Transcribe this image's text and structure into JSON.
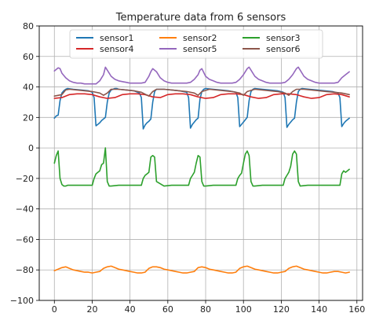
{
  "chart_data": {
    "type": "line",
    "title": "Temperature data from 6 sensors",
    "xlabel": "",
    "ylabel": "",
    "xlim": [
      -8,
      163
    ],
    "ylim": [
      -100,
      80
    ],
    "xticks": [
      0,
      20,
      40,
      60,
      80,
      100,
      120,
      140,
      160
    ],
    "yticks": [
      -100,
      -80,
      -60,
      -40,
      -20,
      0,
      20,
      40,
      60,
      80
    ],
    "grid": true,
    "legend_position": "top-center",
    "legend_columns": 3,
    "series": [
      {
        "name": "sensor1",
        "color": "#1f77b4",
        "x": [
          0,
          1,
          2,
          3,
          4,
          5,
          6,
          7,
          10,
          14,
          18,
          20,
          21,
          22,
          23,
          24,
          25,
          26,
          27,
          28,
          29,
          30,
          31,
          32,
          33,
          34,
          38,
          42,
          45,
          46,
          47,
          48,
          49,
          50,
          51,
          52,
          53,
          54,
          58,
          62,
          66,
          70,
          71,
          72,
          73,
          74,
          75,
          76,
          77,
          78,
          79,
          80,
          84,
          88,
          92,
          96,
          97,
          98,
          99,
          100,
          101,
          102,
          103,
          104,
          105,
          106,
          110,
          114,
          118,
          121,
          122,
          123,
          124,
          125,
          126,
          127,
          128,
          129,
          130,
          131,
          135,
          139,
          143,
          147,
          150,
          151,
          152,
          153,
          154,
          155,
          156
        ],
        "values": [
          19.5,
          21,
          21.5,
          31,
          36,
          37.5,
          38.5,
          39,
          38.5,
          38,
          37.5,
          36.5,
          33,
          14.5,
          15.5,
          16.5,
          18,
          19,
          20,
          30,
          36,
          38,
          38.5,
          39,
          39,
          38.5,
          38,
          37.5,
          36,
          33,
          12.5,
          15,
          16.5,
          17.5,
          19,
          30,
          37,
          38.5,
          38.5,
          38,
          37.5,
          36.5,
          33,
          13,
          15.5,
          17,
          18.5,
          19.5,
          32,
          37,
          38.5,
          39,
          38.5,
          38,
          37.5,
          36.5,
          33,
          14,
          15.5,
          17,
          18.5,
          20,
          31,
          37,
          38.5,
          39,
          38.5,
          38,
          37.5,
          36.5,
          33,
          13.5,
          15.5,
          17,
          18.5,
          19.5,
          30,
          37,
          38.5,
          39,
          38.5,
          38,
          37.5,
          37,
          36,
          33,
          14,
          16,
          17.5,
          18.5,
          19.5
        ]
      },
      {
        "name": "sensor2",
        "color": "#ff7f0e",
        "x": [
          0,
          2,
          4,
          6,
          8,
          10,
          12,
          14,
          16,
          18,
          20,
          22,
          24,
          26,
          28,
          30,
          32,
          34,
          36,
          38,
          40,
          42,
          44,
          46,
          48,
          50,
          52,
          54,
          56,
          58,
          60,
          62,
          64,
          66,
          68,
          70,
          72,
          74,
          76,
          78,
          80,
          82,
          84,
          86,
          88,
          90,
          92,
          94,
          96,
          98,
          100,
          102,
          104,
          106,
          108,
          110,
          112,
          114,
          116,
          118,
          120,
          122,
          124,
          126,
          128,
          130,
          132,
          134,
          136,
          138,
          140,
          142,
          144,
          146,
          148,
          150,
          152,
          154,
          156
        ],
        "values": [
          -80.5,
          -79.5,
          -78.5,
          -78,
          -79,
          -80,
          -80.5,
          -81,
          -81.5,
          -81.5,
          -82,
          -81.5,
          -81,
          -79,
          -78,
          -77.5,
          -78.5,
          -79.5,
          -80,
          -80.5,
          -81,
          -81.5,
          -82,
          -82,
          -81.5,
          -79,
          -78,
          -78,
          -78.5,
          -79.5,
          -80,
          -80.5,
          -81,
          -81.5,
          -82,
          -82,
          -81.5,
          -81,
          -78.5,
          -78,
          -78.5,
          -79.5,
          -80,
          -80.5,
          -81,
          -81.5,
          -82,
          -82,
          -81.5,
          -79,
          -78,
          -77.5,
          -78.5,
          -79.5,
          -80,
          -80.5,
          -81,
          -81.5,
          -82,
          -82,
          -81.5,
          -81,
          -79,
          -78,
          -77.5,
          -78.5,
          -79.5,
          -80,
          -80.5,
          -81,
          -81.5,
          -82,
          -82,
          -81.5,
          -81,
          -81,
          -81.5,
          -82,
          -81.5
        ]
      },
      {
        "name": "sensor3",
        "color": "#2ca02c",
        "x": [
          0,
          1,
          2,
          3,
          4,
          5,
          6,
          7,
          10,
          14,
          18,
          20,
          21,
          22,
          23,
          24,
          25,
          26,
          27,
          28,
          29,
          30,
          34,
          38,
          42,
          46,
          47,
          48,
          49,
          50,
          51,
          52,
          53,
          54,
          58,
          62,
          66,
          70,
          71,
          72,
          73,
          74,
          75,
          76,
          77,
          78,
          79,
          80,
          84,
          88,
          92,
          96,
          97,
          98,
          99,
          100,
          101,
          102,
          103,
          104,
          105,
          106,
          110,
          114,
          118,
          121,
          122,
          123,
          124,
          125,
          126,
          127,
          128,
          129,
          130,
          134,
          138,
          142,
          146,
          150,
          151,
          152,
          153,
          154,
          155,
          156
        ],
        "values": [
          -10,
          -5,
          -2,
          -20,
          -24,
          -25,
          -25,
          -24.5,
          -24.5,
          -24.5,
          -24.5,
          -24.5,
          -20,
          -17,
          -16,
          -15,
          -11,
          -10,
          0,
          -22,
          -25,
          -25,
          -24.5,
          -24.5,
          -24.5,
          -24.5,
          -20,
          -18,
          -17,
          -16,
          -6,
          -5,
          -6,
          -22,
          -25,
          -24.5,
          -24.5,
          -24.5,
          -24.5,
          -20,
          -18,
          -16,
          -10,
          -5,
          -6,
          -22,
          -25,
          -25,
          -24.5,
          -24.5,
          -24.5,
          -24.5,
          -20,
          -18,
          -16.5,
          -10,
          -4,
          -2,
          -5,
          -22,
          -25,
          -25,
          -24.5,
          -24.5,
          -24.5,
          -24.5,
          -20,
          -18,
          -16,
          -12,
          -4,
          -2,
          -4,
          -22,
          -25,
          -24.5,
          -24.5,
          -24.5,
          -24.5,
          -24.5,
          -24.5,
          -17,
          -15,
          -16,
          -15,
          -14
        ]
      },
      {
        "name": "sensor4",
        "color": "#d62728",
        "x": [
          0,
          4,
          8,
          12,
          16,
          20,
          24,
          28,
          32,
          36,
          40,
          44,
          48,
          52,
          56,
          60,
          64,
          68,
          72,
          76,
          80,
          84,
          88,
          92,
          96,
          100,
          104,
          108,
          112,
          116,
          120,
          124,
          128,
          132,
          136,
          140,
          144,
          148,
          152,
          156
        ],
        "values": [
          32.5,
          33,
          35,
          35.5,
          35.5,
          35,
          33.5,
          32.5,
          33,
          35,
          35.5,
          35.5,
          35,
          33.5,
          33,
          35,
          35.5,
          35.5,
          35,
          33.5,
          32.5,
          33,
          35,
          35.5,
          35.5,
          35,
          33.5,
          32.5,
          33,
          35,
          35.5,
          35.5,
          35,
          33.5,
          32.5,
          33,
          35,
          35.5,
          35,
          33.5
        ]
      },
      {
        "name": "sensor5",
        "color": "#9467bd",
        "x": [
          0,
          2,
          3,
          4,
          6,
          8,
          10,
          12,
          14,
          16,
          18,
          20,
          22,
          24,
          26,
          27,
          28,
          30,
          32,
          34,
          36,
          38,
          40,
          42,
          44,
          46,
          48,
          50,
          51,
          52,
          54,
          56,
          58,
          60,
          62,
          64,
          66,
          68,
          70,
          72,
          74,
          76,
          77,
          78,
          80,
          82,
          84,
          86,
          88,
          90,
          92,
          94,
          96,
          98,
          100,
          102,
          103,
          104,
          106,
          108,
          110,
          112,
          114,
          116,
          118,
          120,
          122,
          124,
          126,
          128,
          129,
          130,
          132,
          134,
          136,
          138,
          140,
          142,
          144,
          146,
          148,
          150,
          152,
          154,
          156
        ],
        "values": [
          50.5,
          52.5,
          52,
          49,
          46,
          44,
          43,
          42.5,
          42.5,
          42,
          42,
          42,
          42,
          44,
          48,
          53,
          51,
          47,
          45,
          44,
          43.5,
          43,
          42.5,
          42.5,
          42.5,
          42.5,
          43,
          47,
          50,
          52,
          50,
          46,
          44,
          43,
          42.5,
          42.5,
          42.5,
          42.5,
          42.5,
          43,
          45,
          48,
          51,
          52,
          47,
          45,
          44,
          43,
          42.5,
          42.5,
          42.5,
          42.5,
          43,
          45,
          48,
          52,
          53,
          51,
          47,
          45,
          44,
          43,
          42.5,
          42.5,
          42.5,
          42.5,
          43,
          45,
          48,
          52,
          53,
          51,
          47,
          45,
          44,
          43,
          42.5,
          42.5,
          42.5,
          42.5,
          42.5,
          43,
          46,
          48,
          50
        ]
      },
      {
        "name": "sensor6",
        "color": "#8c564b",
        "x": [
          0,
          4,
          6,
          8,
          12,
          16,
          20,
          24,
          26,
          28,
          30,
          34,
          38,
          42,
          46,
          50,
          52,
          54,
          58,
          62,
          66,
          70,
          74,
          76,
          78,
          82,
          86,
          90,
          94,
          98,
          100,
          102,
          106,
          110,
          114,
          118,
          122,
          124,
          126,
          128,
          132,
          136,
          140,
          144,
          148,
          152,
          156
        ],
        "values": [
          34,
          35,
          38,
          38.5,
          38,
          37.5,
          37,
          36,
          34.5,
          36,
          38.5,
          38.5,
          38,
          37.5,
          36.5,
          34,
          37,
          38.5,
          38.5,
          38,
          37.5,
          37,
          36,
          34.5,
          37,
          38.5,
          38,
          37.5,
          37,
          36,
          34.5,
          37,
          38.5,
          38,
          37.5,
          37,
          36,
          34.5,
          37,
          38.5,
          38.5,
          38,
          37.5,
          37,
          36.5,
          36,
          35
        ]
      }
    ]
  }
}
